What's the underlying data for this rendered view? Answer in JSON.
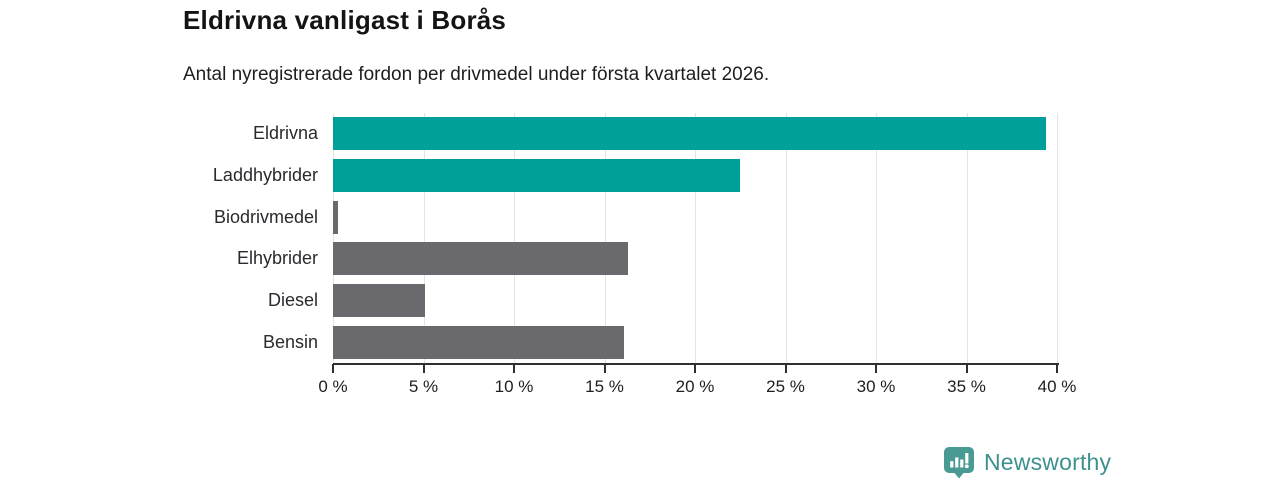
{
  "chart_data": {
    "type": "bar",
    "orientation": "horizontal",
    "title": "Eldrivna vanligast i Borås",
    "subtitle": "Antal nyregistrerade fordon per drivmedel under första kvartalet 2026.",
    "categories": [
      "Eldrivna",
      "Laddhybrider",
      "Biodrivmedel",
      "Elhybrider",
      "Diesel",
      "Bensin"
    ],
    "values": [
      39.4,
      22.5,
      0.3,
      16.3,
      5.1,
      16.1
    ],
    "unit": "%",
    "bar_colors": [
      "#00a09a",
      "#00a09a",
      "#6a6a6e",
      "#6a6a6e",
      "#6a6a6e",
      "#6a6a6e"
    ],
    "xlim": [
      0,
      40
    ],
    "x_ticks": [
      0,
      5,
      10,
      15,
      20,
      25,
      30,
      35,
      40
    ],
    "x_tick_labels": [
      "0 %",
      "5 %",
      "10 %",
      "15 %",
      "20 %",
      "25 %",
      "30 %",
      "35 %",
      "40 %"
    ],
    "grid": "vertical-gridlines-on",
    "legend": "none",
    "colors": {
      "accent_teal": "#00a09a",
      "neutral_gray": "#6a6a6e",
      "gridline": "#e4e4e4",
      "axis": "#2f2f2f"
    }
  },
  "branding": {
    "logo_text": "Newsworthy",
    "logo_icon": "bar-chart-speech-bubble-icon",
    "logo_color": "#3d918d"
  }
}
